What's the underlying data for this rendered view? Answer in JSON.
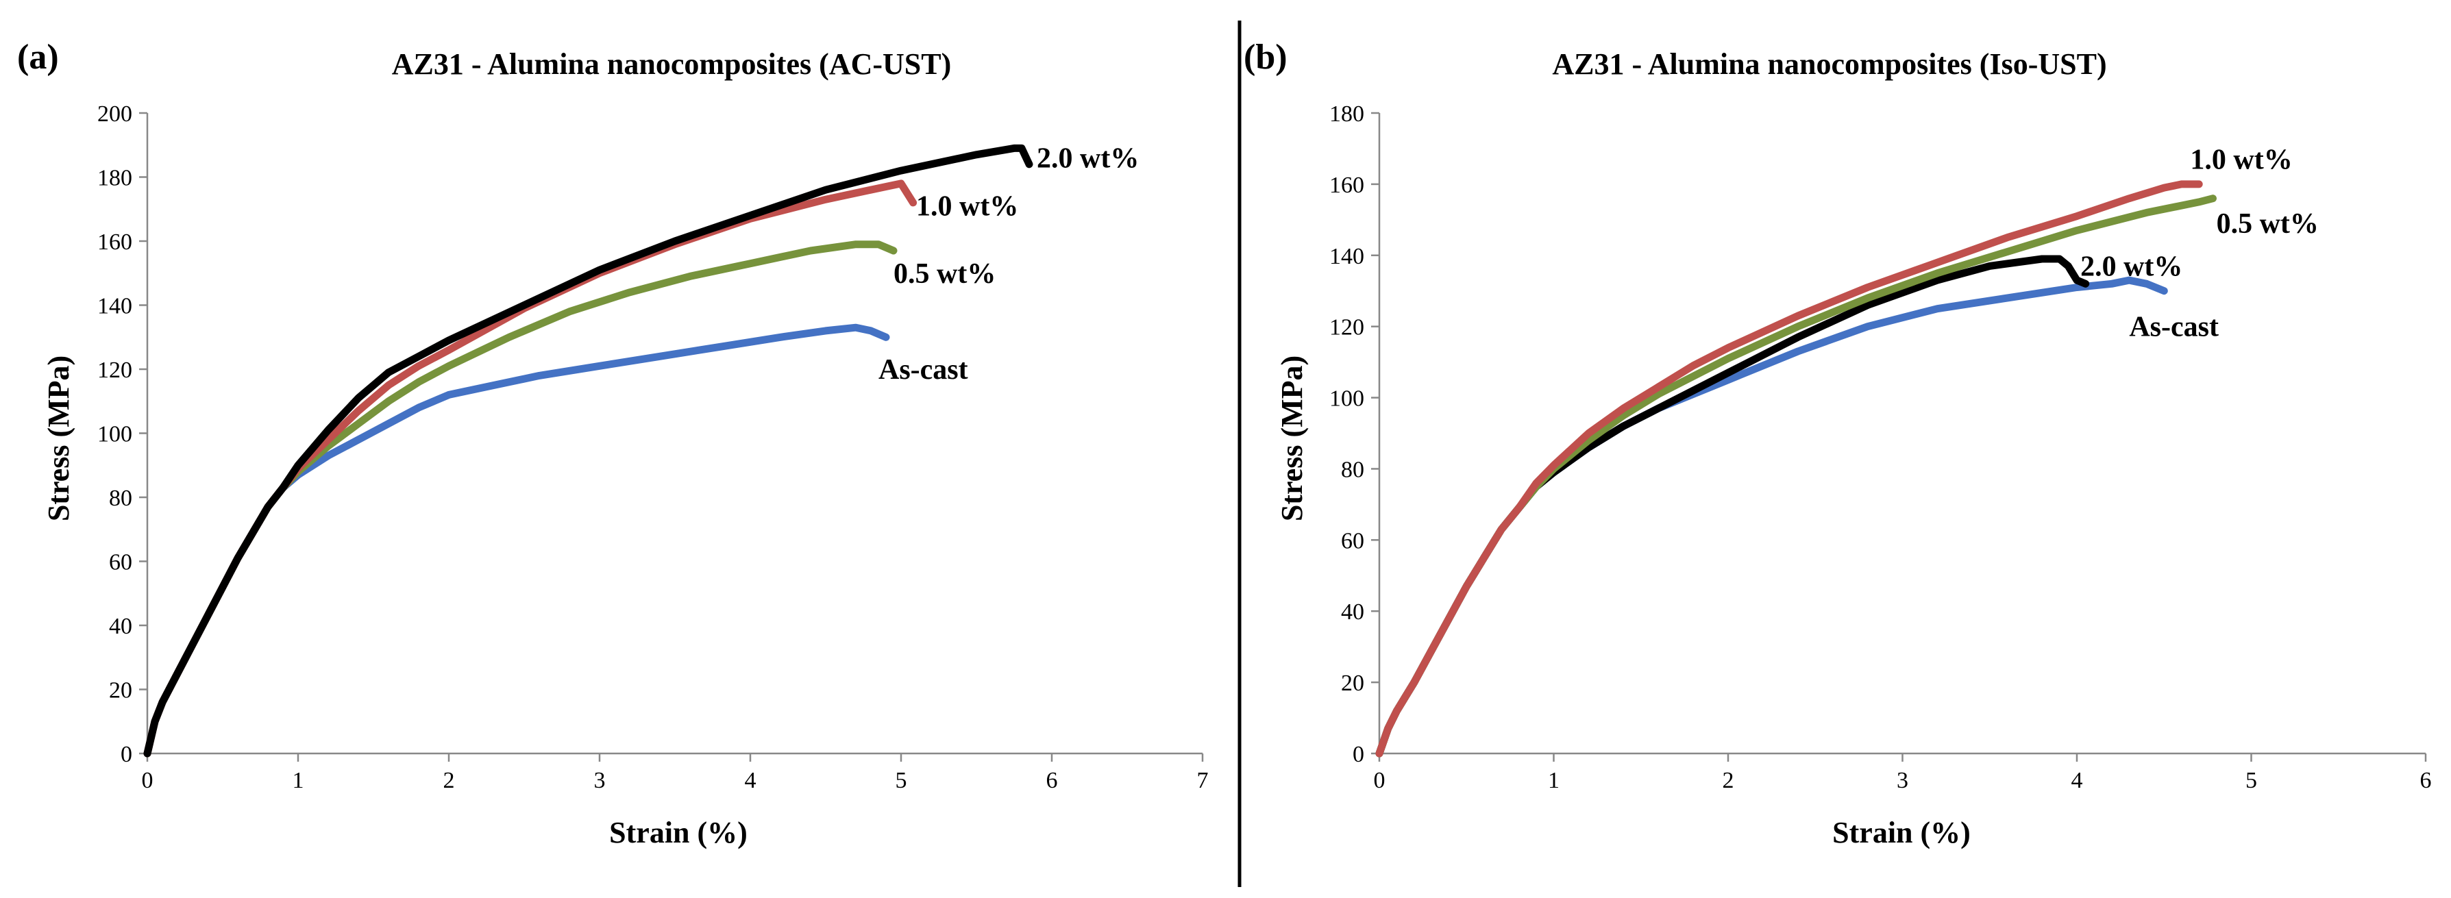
{
  "chart_data": [
    {
      "panel_label": "(a)",
      "type": "line",
      "title": "AZ31 - Alumina nanocomposites (AC-UST)",
      "xlabel": "Strain (%)",
      "ylabel": "Stress (MPa)",
      "xlim": [
        0,
        7
      ],
      "ylim": [
        0,
        200
      ],
      "xticks": [
        0,
        1,
        2,
        3,
        4,
        5,
        6,
        7
      ],
      "yticks": [
        0,
        20,
        40,
        60,
        80,
        100,
        120,
        140,
        160,
        180,
        200
      ],
      "series": [
        {
          "name": "As-cast",
          "label": "As-cast",
          "color": "#4472C4",
          "label_at": [
            4.85,
            120
          ],
          "x": [
            0,
            0.05,
            0.1,
            0.2,
            0.3,
            0.4,
            0.5,
            0.6,
            0.7,
            0.8,
            0.9,
            1.0,
            1.2,
            1.4,
            1.6,
            1.8,
            2.0,
            2.3,
            2.6,
            3.0,
            3.4,
            3.8,
            4.2,
            4.5,
            4.7,
            4.8,
            4.9
          ],
          "y": [
            0,
            10,
            16,
            25,
            34,
            43,
            52,
            61,
            69,
            77,
            83,
            87,
            93,
            98,
            103,
            108,
            112,
            115,
            118,
            121,
            124,
            127,
            130,
            132,
            133,
            132,
            130
          ]
        },
        {
          "name": "0.5 wt%",
          "label": "0.5 wt%",
          "color": "#77933C",
          "label_at": [
            4.95,
            150
          ],
          "x": [
            0,
            0.05,
            0.1,
            0.2,
            0.3,
            0.4,
            0.5,
            0.6,
            0.7,
            0.8,
            0.9,
            1.0,
            1.2,
            1.4,
            1.6,
            1.8,
            2.0,
            2.4,
            2.8,
            3.2,
            3.6,
            4.0,
            4.4,
            4.7,
            4.85,
            4.95
          ],
          "y": [
            0,
            10,
            16,
            25,
            34,
            43,
            52,
            61,
            69,
            77,
            83,
            88,
            96,
            103,
            110,
            116,
            121,
            130,
            138,
            144,
            149,
            153,
            157,
            159,
            159,
            157
          ]
        },
        {
          "name": "1.0 wt%",
          "label": "1.0 wt%",
          "color": "#C0504D",
          "label_at": [
            5.1,
            171
          ],
          "x": [
            0,
            0.05,
            0.1,
            0.2,
            0.3,
            0.4,
            0.5,
            0.6,
            0.7,
            0.8,
            0.9,
            1.0,
            1.2,
            1.4,
            1.6,
            1.8,
            2.0,
            2.5,
            3.0,
            3.5,
            4.0,
            4.5,
            4.9,
            5.0,
            5.08
          ],
          "y": [
            0,
            10,
            16,
            25,
            34,
            43,
            52,
            61,
            69,
            77,
            83,
            89,
            98,
            107,
            115,
            121,
            126,
            139,
            150,
            159,
            167,
            173,
            177,
            178,
            172
          ]
        },
        {
          "name": "2.0 wt%",
          "label": "2.0 wt%",
          "color": "#000000",
          "label_at": [
            5.9,
            186
          ],
          "x": [
            0,
            0.05,
            0.1,
            0.2,
            0.3,
            0.4,
            0.5,
            0.6,
            0.7,
            0.8,
            0.9,
            1.0,
            1.2,
            1.4,
            1.5,
            1.6,
            1.8,
            2.0,
            2.5,
            3.0,
            3.5,
            4.0,
            4.5,
            5.0,
            5.5,
            5.75,
            5.8,
            5.85
          ],
          "y": [
            0,
            10,
            16,
            25,
            34,
            43,
            52,
            61,
            69,
            77,
            83,
            90,
            101,
            111,
            115,
            119,
            124,
            129,
            140,
            151,
            160,
            168,
            176,
            182,
            187,
            189,
            189,
            184
          ]
        }
      ]
    },
    {
      "panel_label": "(b)",
      "type": "line",
      "title": "AZ31 - Alumina nanocomposites (Iso-UST)",
      "xlabel": "Strain (%)",
      "ylabel": "Stress (MPa)",
      "xlim": [
        0,
        6
      ],
      "ylim": [
        0,
        180
      ],
      "xticks": [
        0,
        1,
        2,
        3,
        4,
        5,
        6
      ],
      "yticks": [
        0,
        20,
        40,
        60,
        80,
        100,
        120,
        140,
        160,
        180
      ],
      "series": [
        {
          "name": "As-cast",
          "label": "As-cast",
          "color": "#4472C4",
          "label_at": [
            4.3,
            120
          ],
          "x": [
            0,
            0.05,
            0.1,
            0.2,
            0.3,
            0.4,
            0.5,
            0.6,
            0.7,
            0.8,
            0.9,
            1.0,
            1.2,
            1.4,
            1.6,
            1.8,
            2.0,
            2.4,
            2.8,
            3.2,
            3.6,
            4.0,
            4.2,
            4.3,
            4.4,
            4.5
          ],
          "y": [
            0,
            7,
            12,
            20,
            29,
            38,
            47,
            55,
            63,
            69,
            75,
            79,
            86,
            92,
            97,
            101,
            105,
            113,
            120,
            125,
            128,
            131,
            132,
            133,
            132,
            130
          ]
        },
        {
          "name": "2.0 wt%",
          "label": "2.0 wt%",
          "color": "#000000",
          "label_at": [
            4.02,
            137
          ],
          "x": [
            0,
            0.05,
            0.1,
            0.2,
            0.3,
            0.4,
            0.5,
            0.6,
            0.7,
            0.8,
            0.9,
            1.0,
            1.2,
            1.4,
            1.6,
            1.8,
            2.0,
            2.4,
            2.8,
            3.2,
            3.5,
            3.8,
            3.9,
            3.95,
            4.0,
            4.05
          ],
          "y": [
            0,
            7,
            12,
            20,
            29,
            38,
            47,
            55,
            63,
            69,
            75,
            79,
            86,
            92,
            97,
            102,
            107,
            117,
            126,
            133,
            137,
            139,
            139,
            137,
            133,
            132
          ]
        },
        {
          "name": "0.5 wt%",
          "label": "0.5 wt%",
          "color": "#77933C",
          "label_at": [
            4.8,
            149
          ],
          "x": [
            0,
            0.05,
            0.1,
            0.2,
            0.3,
            0.4,
            0.5,
            0.6,
            0.7,
            0.8,
            0.9,
            1.0,
            1.2,
            1.4,
            1.6,
            1.8,
            2.0,
            2.4,
            2.8,
            3.2,
            3.6,
            4.0,
            4.4,
            4.7,
            4.78
          ],
          "y": [
            0,
            7,
            12,
            20,
            29,
            38,
            47,
            55,
            63,
            69,
            75,
            80,
            88,
            95,
            101,
            106,
            111,
            120,
            128,
            135,
            141,
            147,
            152,
            155,
            156
          ]
        },
        {
          "name": "1.0 wt%",
          "label": "1.0 wt%",
          "color": "#C0504D",
          "label_at": [
            4.65,
            167
          ],
          "x": [
            0,
            0.05,
            0.1,
            0.2,
            0.3,
            0.4,
            0.5,
            0.6,
            0.7,
            0.8,
            0.9,
            1.0,
            1.2,
            1.4,
            1.6,
            1.8,
            2.0,
            2.4,
            2.8,
            3.2,
            3.6,
            4.0,
            4.3,
            4.5,
            4.6,
            4.7
          ],
          "y": [
            0,
            7,
            12,
            20,
            29,
            38,
            47,
            55,
            63,
            69,
            76,
            81,
            90,
            97,
            103,
            109,
            114,
            123,
            131,
            138,
            145,
            151,
            156,
            159,
            160,
            160
          ]
        }
      ]
    }
  ]
}
